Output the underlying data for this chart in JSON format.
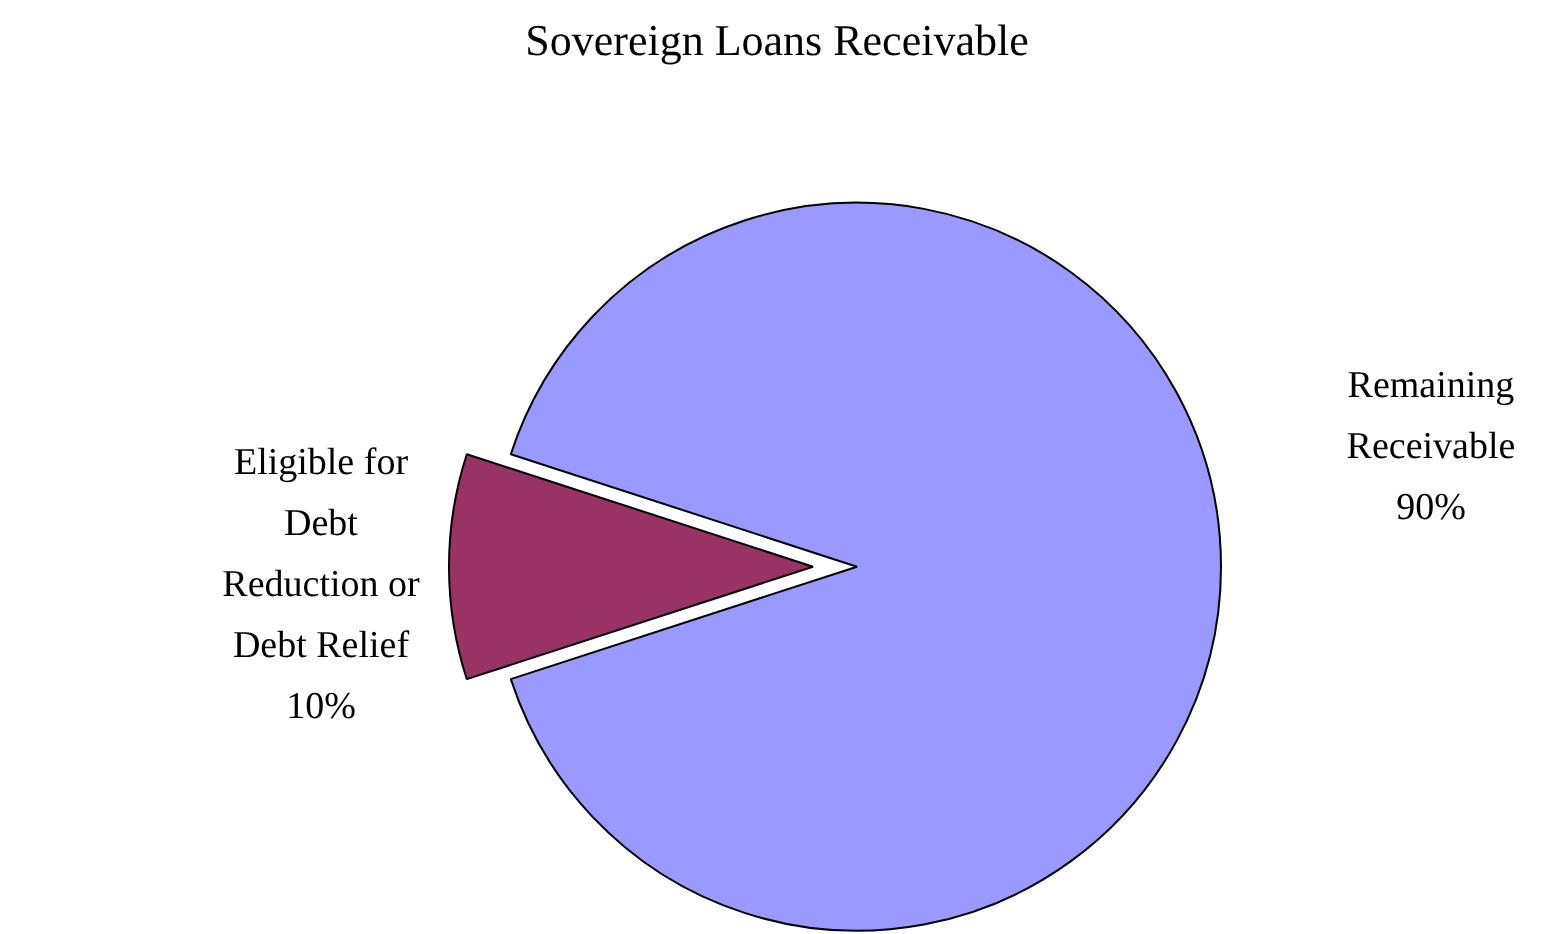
{
  "chart_data": {
    "type": "pie",
    "title": "Sovereign Loans Receivable",
    "categories": [
      "Remaining Receivable",
      "Eligible for Debt Reduction or Debt Relief"
    ],
    "values": [
      90,
      10
    ],
    "colors": [
      "#9999ff",
      "#993366"
    ],
    "value_labels": [
      "90%",
      "10%"
    ]
  }
}
